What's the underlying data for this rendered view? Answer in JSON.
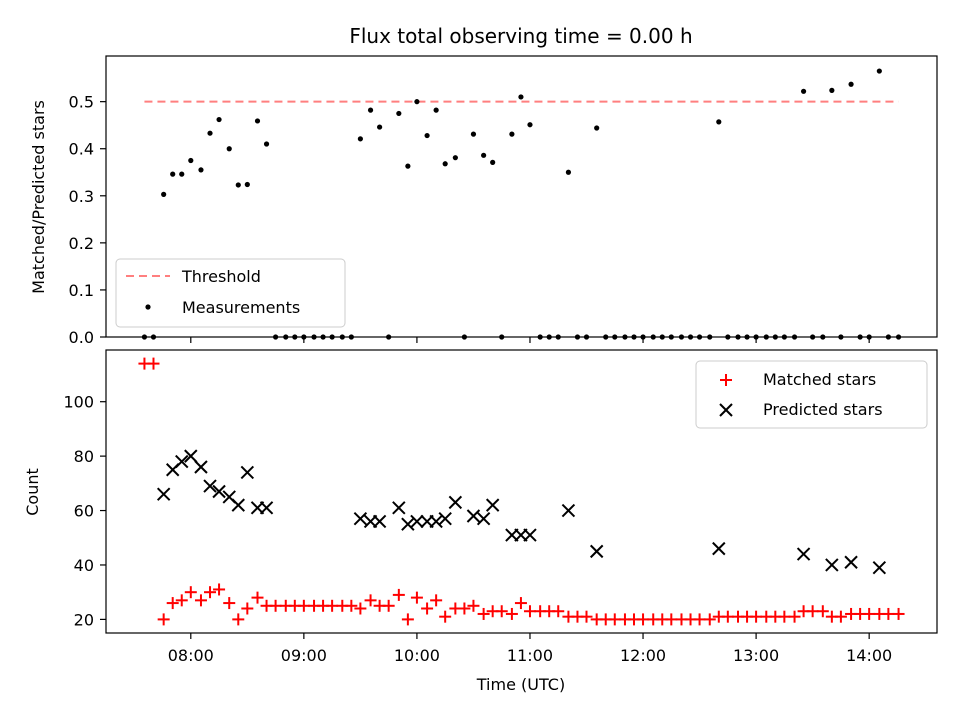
{
  "chart_data": [
    {
      "type": "scatter",
      "title": "Flux total observing time = 0.00 h",
      "xlabel": "",
      "ylabel": "Matched/Predicted stars",
      "xlim": [
        7.25,
        14.6
      ],
      "ylim": [
        0.0,
        0.597
      ],
      "yticks": [
        0.0,
        0.1,
        0.2,
        0.3,
        0.4,
        0.5
      ],
      "ytick_labels": [
        "0.0",
        "0.1",
        "0.2",
        "0.3",
        "0.4",
        "0.5"
      ],
      "threshold": {
        "name": "Threshold",
        "value": 0.5,
        "x_start": 7.59,
        "x_end": 14.26,
        "color": "#ff7f7f"
      },
      "legend": {
        "placement": "lower-left",
        "entries": [
          "Threshold",
          "Measurements"
        ]
      },
      "series": [
        {
          "name": "Measurements",
          "color": "#000000",
          "marker": "dot",
          "points": [
            [
              7.59,
              0.0
            ],
            [
              7.67,
              0.0
            ],
            [
              7.76,
              0.303
            ],
            [
              7.84,
              0.346
            ],
            [
              7.92,
              0.346
            ],
            [
              8.0,
              0.375
            ],
            [
              8.09,
              0.355
            ],
            [
              8.17,
              0.433
            ],
            [
              8.25,
              0.462
            ],
            [
              8.34,
              0.4
            ],
            [
              8.42,
              0.323
            ],
            [
              8.5,
              0.324
            ],
            [
              8.59,
              0.459
            ],
            [
              8.67,
              0.41
            ],
            [
              8.75,
              0.0
            ],
            [
              8.84,
              0.0
            ],
            [
              8.92,
              0.0
            ],
            [
              9.0,
              0.0
            ],
            [
              9.09,
              0.0
            ],
            [
              9.17,
              0.0
            ],
            [
              9.25,
              0.0
            ],
            [
              9.34,
              0.0
            ],
            [
              9.42,
              0.0
            ],
            [
              9.5,
              0.421
            ],
            [
              9.59,
              0.482
            ],
            [
              9.67,
              0.446
            ],
            [
              9.75,
              0.0
            ],
            [
              9.84,
              0.475
            ],
            [
              9.92,
              0.363
            ],
            [
              10.0,
              0.5
            ],
            [
              10.09,
              0.428
            ],
            [
              10.17,
              0.482
            ],
            [
              10.25,
              0.368
            ],
            [
              10.34,
              0.381
            ],
            [
              10.42,
              0.0
            ],
            [
              10.5,
              0.431
            ],
            [
              10.59,
              0.386
            ],
            [
              10.67,
              0.371
            ],
            [
              10.75,
              0.0
            ],
            [
              10.84,
              0.431
            ],
            [
              10.92,
              0.51
            ],
            [
              11.0,
              0.451
            ],
            [
              11.09,
              0.0
            ],
            [
              11.17,
              0.0
            ],
            [
              11.25,
              0.0
            ],
            [
              11.34,
              0.35
            ],
            [
              11.42,
              0.0
            ],
            [
              11.5,
              0.0
            ],
            [
              11.59,
              0.444
            ],
            [
              11.67,
              0.0
            ],
            [
              11.75,
              0.0
            ],
            [
              11.84,
              0.0
            ],
            [
              11.92,
              0.0
            ],
            [
              12.0,
              0.0
            ],
            [
              12.09,
              0.0
            ],
            [
              12.17,
              0.0
            ],
            [
              12.25,
              0.0
            ],
            [
              12.34,
              0.0
            ],
            [
              12.42,
              0.0
            ],
            [
              12.5,
              0.0
            ],
            [
              12.59,
              0.0
            ],
            [
              12.67,
              0.457
            ],
            [
              12.75,
              0.0
            ],
            [
              12.84,
              0.0
            ],
            [
              12.92,
              0.0
            ],
            [
              13.0,
              0.0
            ],
            [
              13.09,
              0.0
            ],
            [
              13.17,
              0.0
            ],
            [
              13.25,
              0.0
            ],
            [
              13.34,
              0.0
            ],
            [
              13.42,
              0.522
            ],
            [
              13.5,
              0.0
            ],
            [
              13.59,
              0.0
            ],
            [
              13.67,
              0.524
            ],
            [
              13.75,
              0.0
            ],
            [
              13.84,
              0.537
            ],
            [
              13.92,
              0.0
            ],
            [
              14.0,
              0.0
            ],
            [
              14.09,
              0.565
            ],
            [
              14.17,
              0.0
            ],
            [
              14.26,
              0.0
            ]
          ]
        }
      ]
    },
    {
      "type": "scatter",
      "title": "",
      "xlabel": "Time (UTC)",
      "ylabel": "Count",
      "xlim": [
        7.25,
        14.6
      ],
      "ylim": [
        15.0,
        119.0
      ],
      "xticks": [
        8,
        9,
        10,
        11,
        12,
        13,
        14
      ],
      "xtick_labels": [
        "08:00",
        "09:00",
        "10:00",
        "11:00",
        "12:00",
        "13:00",
        "14:00"
      ],
      "yticks": [
        20,
        40,
        60,
        80,
        100
      ],
      "ytick_labels": [
        "20",
        "40",
        "60",
        "80",
        "100"
      ],
      "legend": {
        "placement": "upper-right",
        "entries": [
          "Matched stars",
          "Predicted stars"
        ]
      },
      "series": [
        {
          "name": "Matched stars",
          "color": "#ff0000",
          "marker": "plus",
          "points": [
            [
              7.59,
              114
            ],
            [
              7.67,
              114
            ],
            [
              7.76,
              20
            ],
            [
              7.84,
              26
            ],
            [
              7.92,
              27
            ],
            [
              8.0,
              30
            ],
            [
              8.09,
              27
            ],
            [
              8.17,
              30
            ],
            [
              8.25,
              31
            ],
            [
              8.34,
              26
            ],
            [
              8.42,
              20
            ],
            [
              8.5,
              24
            ],
            [
              8.59,
              28
            ],
            [
              8.67,
              25
            ],
            [
              8.75,
              25
            ],
            [
              8.84,
              25
            ],
            [
              8.92,
              25
            ],
            [
              9.0,
              25
            ],
            [
              9.09,
              25
            ],
            [
              9.17,
              25
            ],
            [
              9.25,
              25
            ],
            [
              9.34,
              25
            ],
            [
              9.42,
              25
            ],
            [
              9.5,
              24
            ],
            [
              9.59,
              27
            ],
            [
              9.67,
              25
            ],
            [
              9.75,
              25
            ],
            [
              9.84,
              29
            ],
            [
              9.92,
              20
            ],
            [
              10.0,
              28
            ],
            [
              10.09,
              24
            ],
            [
              10.17,
              27
            ],
            [
              10.25,
              21
            ],
            [
              10.34,
              24
            ],
            [
              10.42,
              24
            ],
            [
              10.5,
              25
            ],
            [
              10.59,
              22
            ],
            [
              10.67,
              23
            ],
            [
              10.75,
              23
            ],
            [
              10.84,
              22
            ],
            [
              10.92,
              26
            ],
            [
              11.0,
              23
            ],
            [
              11.09,
              23
            ],
            [
              11.17,
              23
            ],
            [
              11.25,
              23
            ],
            [
              11.34,
              21
            ],
            [
              11.42,
              21
            ],
            [
              11.5,
              21
            ],
            [
              11.59,
              20
            ],
            [
              11.67,
              20
            ],
            [
              11.75,
              20
            ],
            [
              11.84,
              20
            ],
            [
              11.92,
              20
            ],
            [
              12.0,
              20
            ],
            [
              12.09,
              20
            ],
            [
              12.17,
              20
            ],
            [
              12.25,
              20
            ],
            [
              12.34,
              20
            ],
            [
              12.42,
              20
            ],
            [
              12.5,
              20
            ],
            [
              12.59,
              20
            ],
            [
              12.67,
              21
            ],
            [
              12.75,
              21
            ],
            [
              12.84,
              21
            ],
            [
              12.92,
              21
            ],
            [
              13.0,
              21
            ],
            [
              13.09,
              21
            ],
            [
              13.17,
              21
            ],
            [
              13.25,
              21
            ],
            [
              13.34,
              21
            ],
            [
              13.42,
              23
            ],
            [
              13.5,
              23
            ],
            [
              13.59,
              23
            ],
            [
              13.67,
              21
            ],
            [
              13.75,
              21
            ],
            [
              13.84,
              22
            ],
            [
              13.92,
              22
            ],
            [
              14.0,
              22
            ],
            [
              14.09,
              22
            ],
            [
              14.17,
              22
            ],
            [
              14.26,
              22
            ]
          ]
        },
        {
          "name": "Predicted stars",
          "color": "#000000",
          "marker": "x",
          "points": [
            [
              7.76,
              66
            ],
            [
              7.84,
              75
            ],
            [
              7.92,
              78
            ],
            [
              8.0,
              80
            ],
            [
              8.09,
              76
            ],
            [
              8.17,
              69
            ],
            [
              8.25,
              67
            ],
            [
              8.34,
              65
            ],
            [
              8.42,
              62
            ],
            [
              8.5,
              74
            ],
            [
              8.59,
              61
            ],
            [
              8.67,
              61
            ],
            [
              9.5,
              57
            ],
            [
              9.59,
              56
            ],
            [
              9.67,
              56
            ],
            [
              9.84,
              61
            ],
            [
              9.92,
              55
            ],
            [
              10.0,
              56
            ],
            [
              10.09,
              56
            ],
            [
              10.17,
              56
            ],
            [
              10.25,
              57
            ],
            [
              10.34,
              63
            ],
            [
              10.5,
              58
            ],
            [
              10.59,
              57
            ],
            [
              10.67,
              62
            ],
            [
              10.84,
              51
            ],
            [
              10.92,
              51
            ],
            [
              11.0,
              51
            ],
            [
              11.34,
              60
            ],
            [
              11.59,
              45
            ],
            [
              12.67,
              46
            ],
            [
              13.42,
              44
            ],
            [
              13.67,
              40
            ],
            [
              13.84,
              41
            ],
            [
              14.09,
              39
            ]
          ]
        }
      ]
    }
  ]
}
